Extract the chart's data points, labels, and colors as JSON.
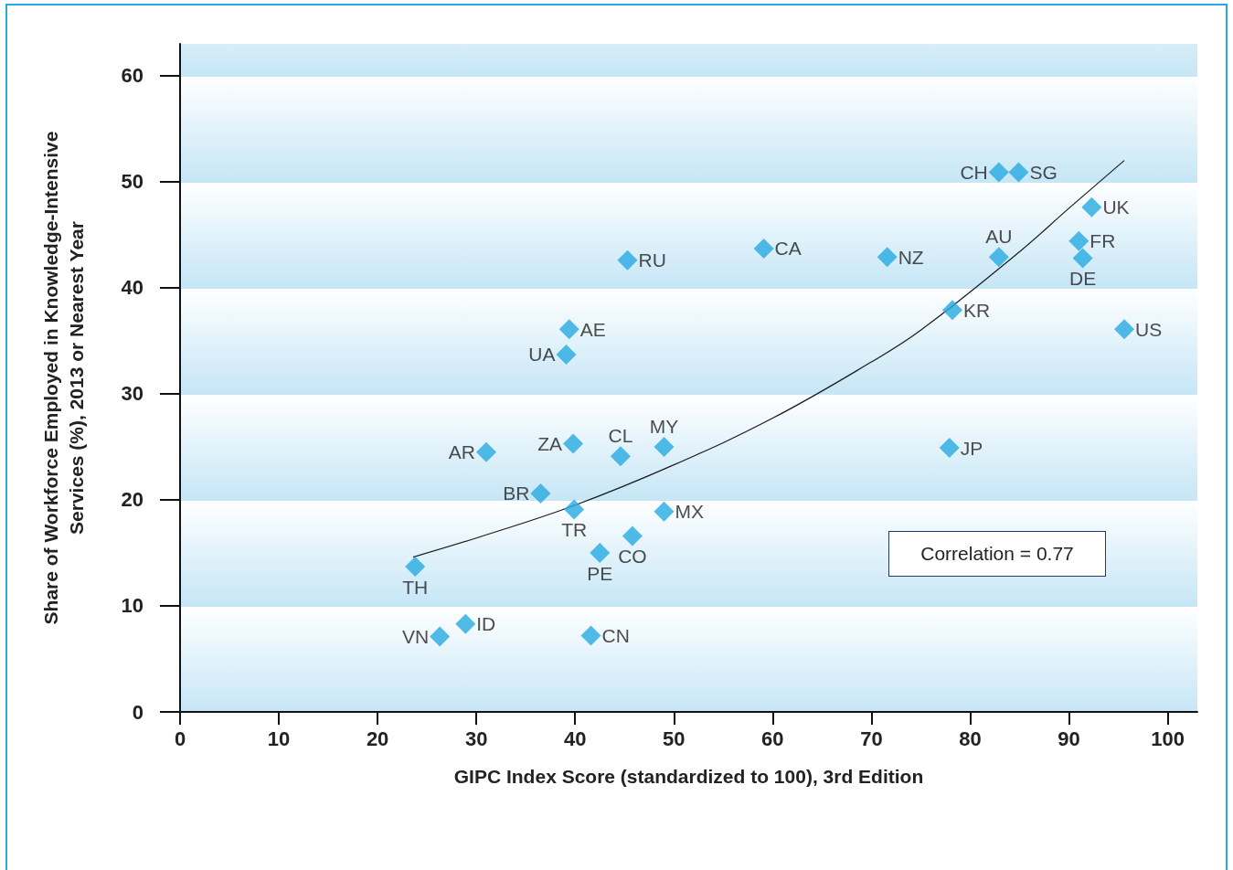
{
  "chart_data": {
    "type": "scatter",
    "xlabel": "GIPC Index Score (standardized to 100), 3rd Edition",
    "ylabel": "Share of Workforce Employed in Knowledge-Intensive\nServices (%), 2013 or Nearest Year",
    "xlim": [
      0,
      103
    ],
    "xticks": [
      0,
      10,
      20,
      30,
      40,
      50,
      60,
      70,
      80,
      90,
      100
    ],
    "ylim": [
      0,
      63
    ],
    "yticks": [
      0,
      10,
      20,
      30,
      40,
      50,
      60
    ],
    "grid": "y",
    "marker": "diamond",
    "series": [
      {
        "color": "#27aae1",
        "x": [
          82.9,
          84.9,
          92.3,
          91.0,
          91.4,
          82.9,
          71.6,
          59.1,
          45.3,
          78.2,
          95.6,
          39.4,
          39.1,
          77.9,
          49.0,
          44.6,
          39.8,
          31.0,
          36.5,
          39.9,
          49.0,
          45.8,
          42.5,
          23.8,
          28.9,
          26.3,
          41.6
        ],
        "values": [
          50.9,
          50.9,
          47.6,
          44.4,
          42.8,
          42.9,
          42.9,
          43.7,
          42.6,
          37.9,
          36.1,
          36.1,
          33.7,
          24.9,
          25.0,
          24.1,
          25.3,
          24.5,
          20.6,
          19.1,
          18.9,
          16.6,
          15.0,
          13.7,
          8.3,
          7.1,
          7.2
        ]
      },
      {
        "type": "line",
        "color": "#1a1a1a",
        "marker": "none",
        "x": [
          23.6,
          30,
          40,
          50,
          60,
          70,
          75,
          85,
          90,
          95.6
        ],
        "values": [
          14.6,
          16.4,
          19.5,
          23.3,
          27.7,
          33.0,
          36.0,
          43.4,
          47.5,
          52.0
        ]
      }
    ],
    "annotations": [
      {
        "text": "CH",
        "x": 82.9,
        "y": 50.9
      },
      {
        "text": "SG",
        "x": 84.9,
        "y": 50.9
      },
      {
        "text": "UK",
        "x": 92.3,
        "y": 47.6
      },
      {
        "text": "FR",
        "x": 91.0,
        "y": 44.4
      },
      {
        "text": "DE",
        "x": 91.4,
        "y": 42.8
      },
      {
        "text": "AU",
        "x": 82.9,
        "y": 42.9
      },
      {
        "text": "NZ",
        "x": 71.6,
        "y": 42.9
      },
      {
        "text": "CA",
        "x": 59.1,
        "y": 43.7
      },
      {
        "text": "RU",
        "x": 45.3,
        "y": 42.6
      },
      {
        "text": "KR",
        "x": 78.2,
        "y": 37.9
      },
      {
        "text": "US",
        "x": 95.6,
        "y": 36.1
      },
      {
        "text": "AE",
        "x": 39.4,
        "y": 36.1
      },
      {
        "text": "UA",
        "x": 39.1,
        "y": 33.7
      },
      {
        "text": "JP",
        "x": 77.9,
        "y": 24.9
      },
      {
        "text": "MY",
        "x": 49.0,
        "y": 25.0
      },
      {
        "text": "CL",
        "x": 44.6,
        "y": 24.1
      },
      {
        "text": "ZA",
        "x": 39.8,
        "y": 25.3
      },
      {
        "text": "AR",
        "x": 31.0,
        "y": 24.5
      },
      {
        "text": "BR",
        "x": 36.5,
        "y": 20.6
      },
      {
        "text": "TR",
        "x": 39.9,
        "y": 19.1
      },
      {
        "text": "MX",
        "x": 49.0,
        "y": 18.9
      },
      {
        "text": "CO",
        "x": 45.8,
        "y": 16.6
      },
      {
        "text": "PE",
        "x": 42.5,
        "y": 15.0
      },
      {
        "text": "TH",
        "x": 23.8,
        "y": 13.7
      },
      {
        "text": "ID",
        "x": 28.9,
        "y": 8.3
      },
      {
        "text": "VN",
        "x": 26.3,
        "y": 7.1
      },
      {
        "text": "CN",
        "x": 41.6,
        "y": 7.2
      },
      "Correlation = 0.77"
    ]
  }
}
